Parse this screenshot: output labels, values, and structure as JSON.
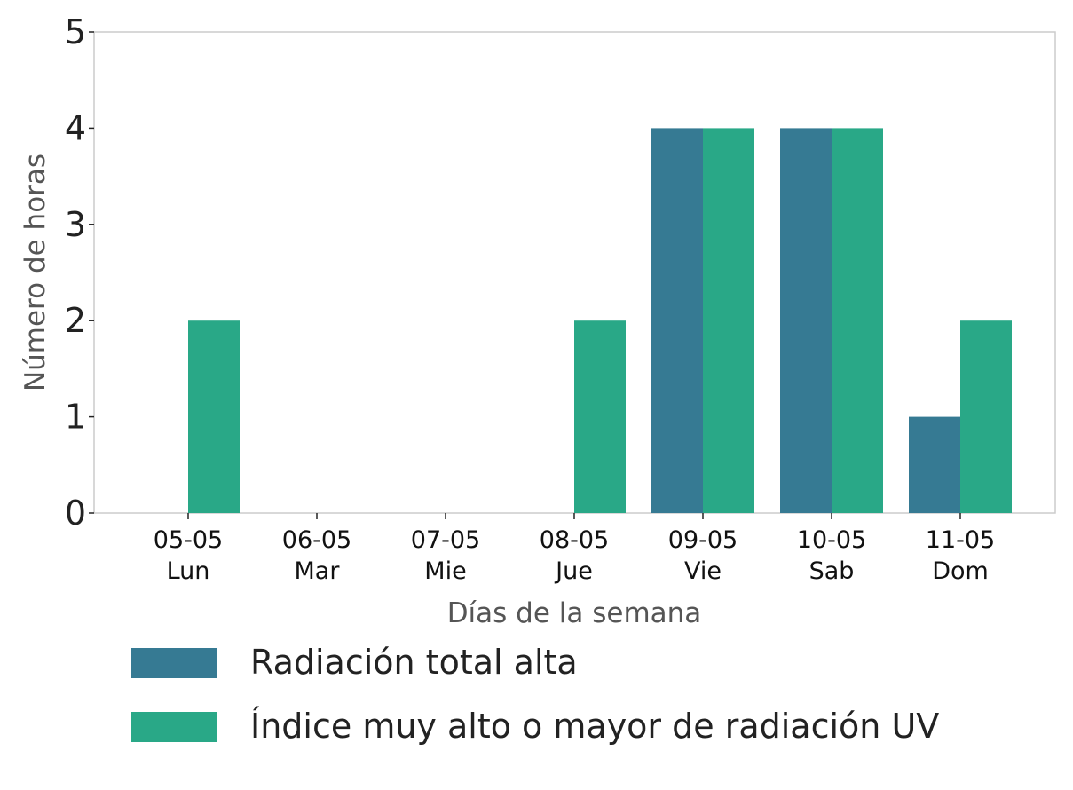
{
  "chart_data": {
    "type": "bar",
    "title": "",
    "xlabel": "Días de la semana",
    "ylabel": "Número de horas",
    "ylim": [
      0,
      5
    ],
    "yticks": [
      0,
      1,
      2,
      3,
      4,
      5
    ],
    "categories": [
      {
        "date": "05-05",
        "day": "Lun"
      },
      {
        "date": "06-05",
        "day": "Mar"
      },
      {
        "date": "07-05",
        "day": "Mie"
      },
      {
        "date": "08-05",
        "day": "Jue"
      },
      {
        "date": "09-05",
        "day": "Vie"
      },
      {
        "date": "10-05",
        "day": "Sab"
      },
      {
        "date": "11-05",
        "day": "Dom"
      }
    ],
    "series": [
      {
        "name": "Radiación total alta",
        "color": "#367a93",
        "values": [
          0,
          0,
          0,
          0,
          4,
          4,
          1
        ]
      },
      {
        "name": "Índice muy alto o mayor de radiación UV",
        "color": "#29a887",
        "values": [
          2,
          0,
          0,
          2,
          4,
          4,
          2
        ]
      }
    ],
    "grid": false,
    "legend_placement": "bottom-left"
  }
}
